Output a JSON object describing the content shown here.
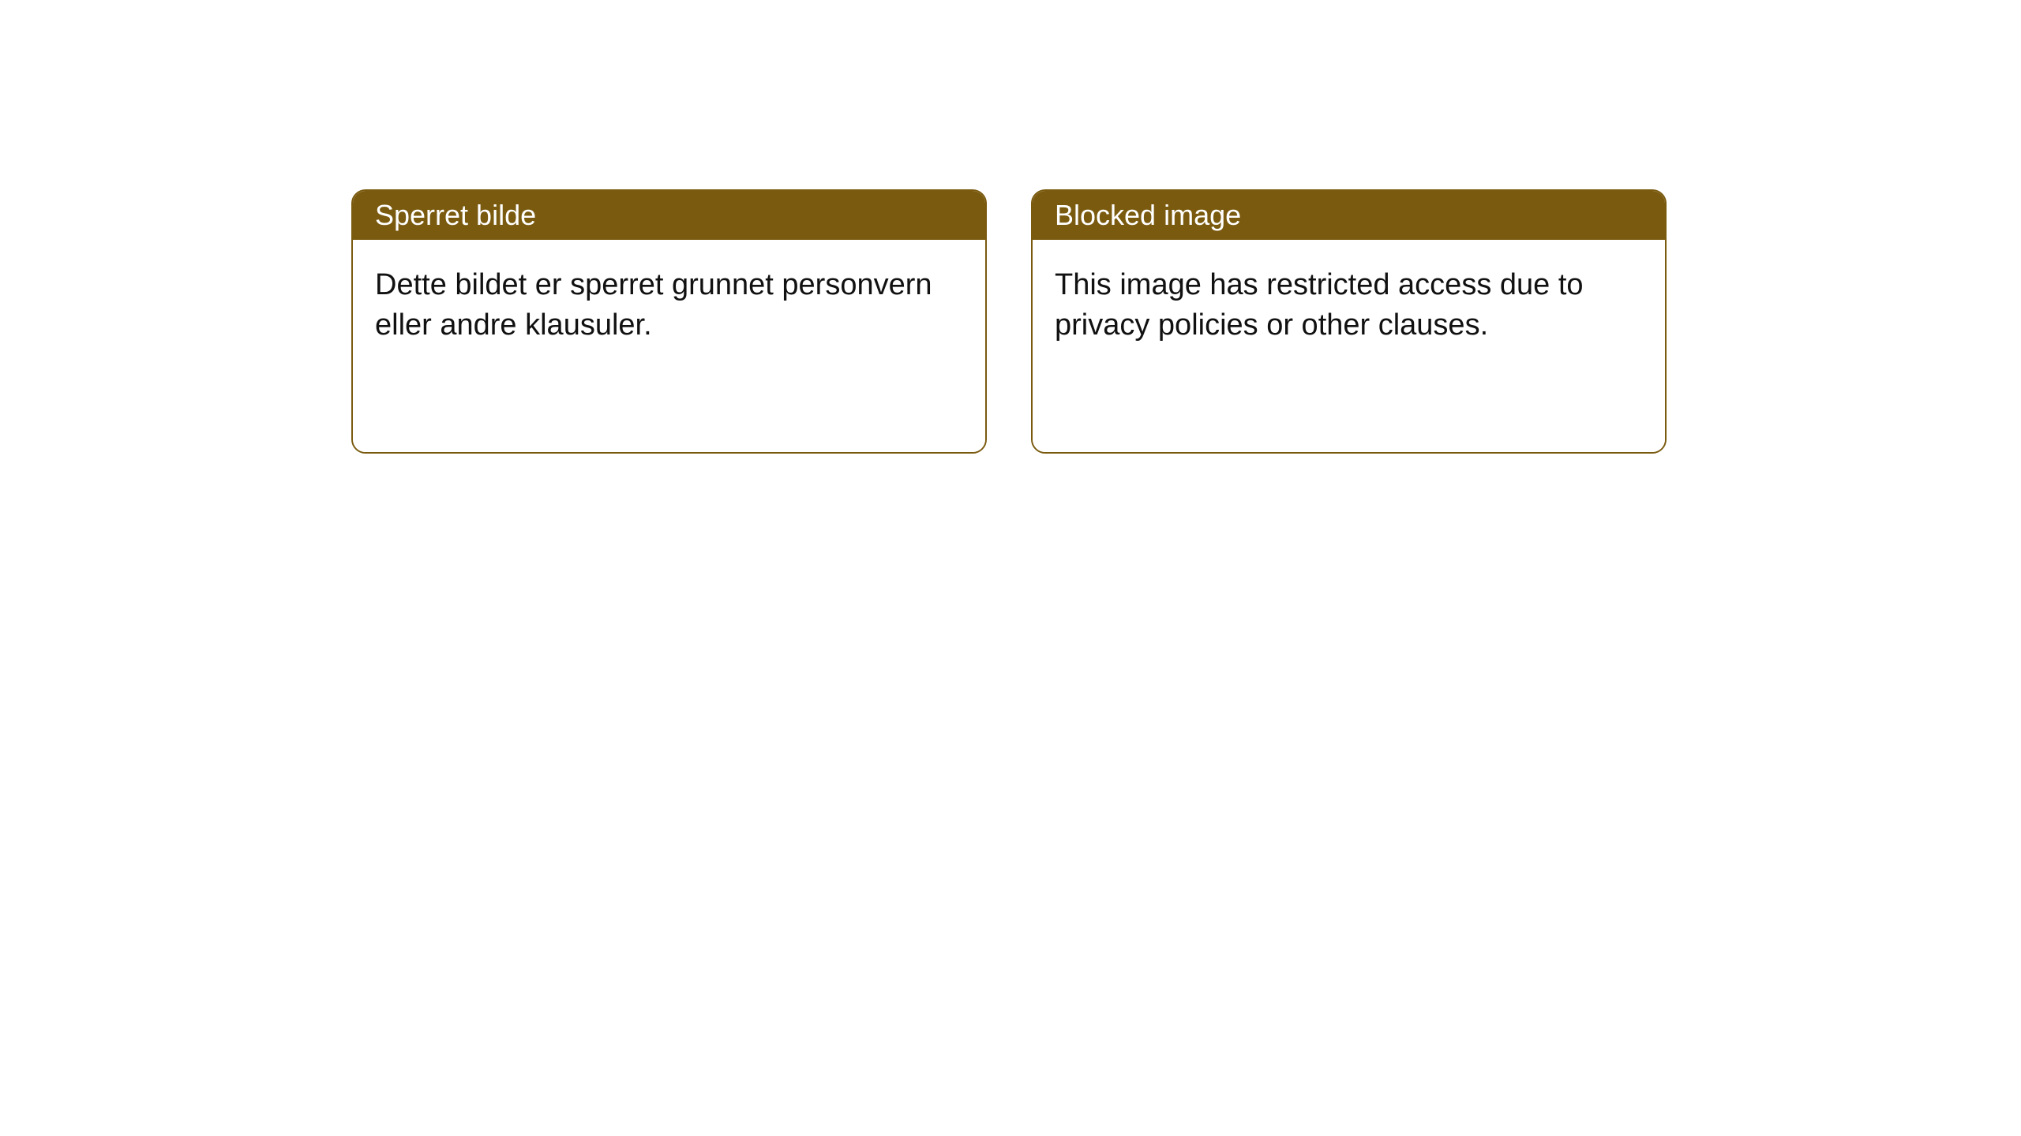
{
  "theme": {
    "header_bg": "#7a5a0f",
    "header_text": "#ffffff",
    "border_color": "#7a5a0f",
    "body_bg": "#ffffff",
    "body_text": "#111111",
    "page_bg": "#ffffff",
    "border_width": 2,
    "border_radius": 18,
    "header_font_size": 36,
    "body_font_size": 38
  },
  "cards": [
    {
      "title": "Sperret bilde",
      "body": "Dette bildet er sperret grunnet personvern eller andre klausuler."
    },
    {
      "title": "Blocked image",
      "body": "This image has restricted access due to privacy policies or other clauses."
    }
  ]
}
